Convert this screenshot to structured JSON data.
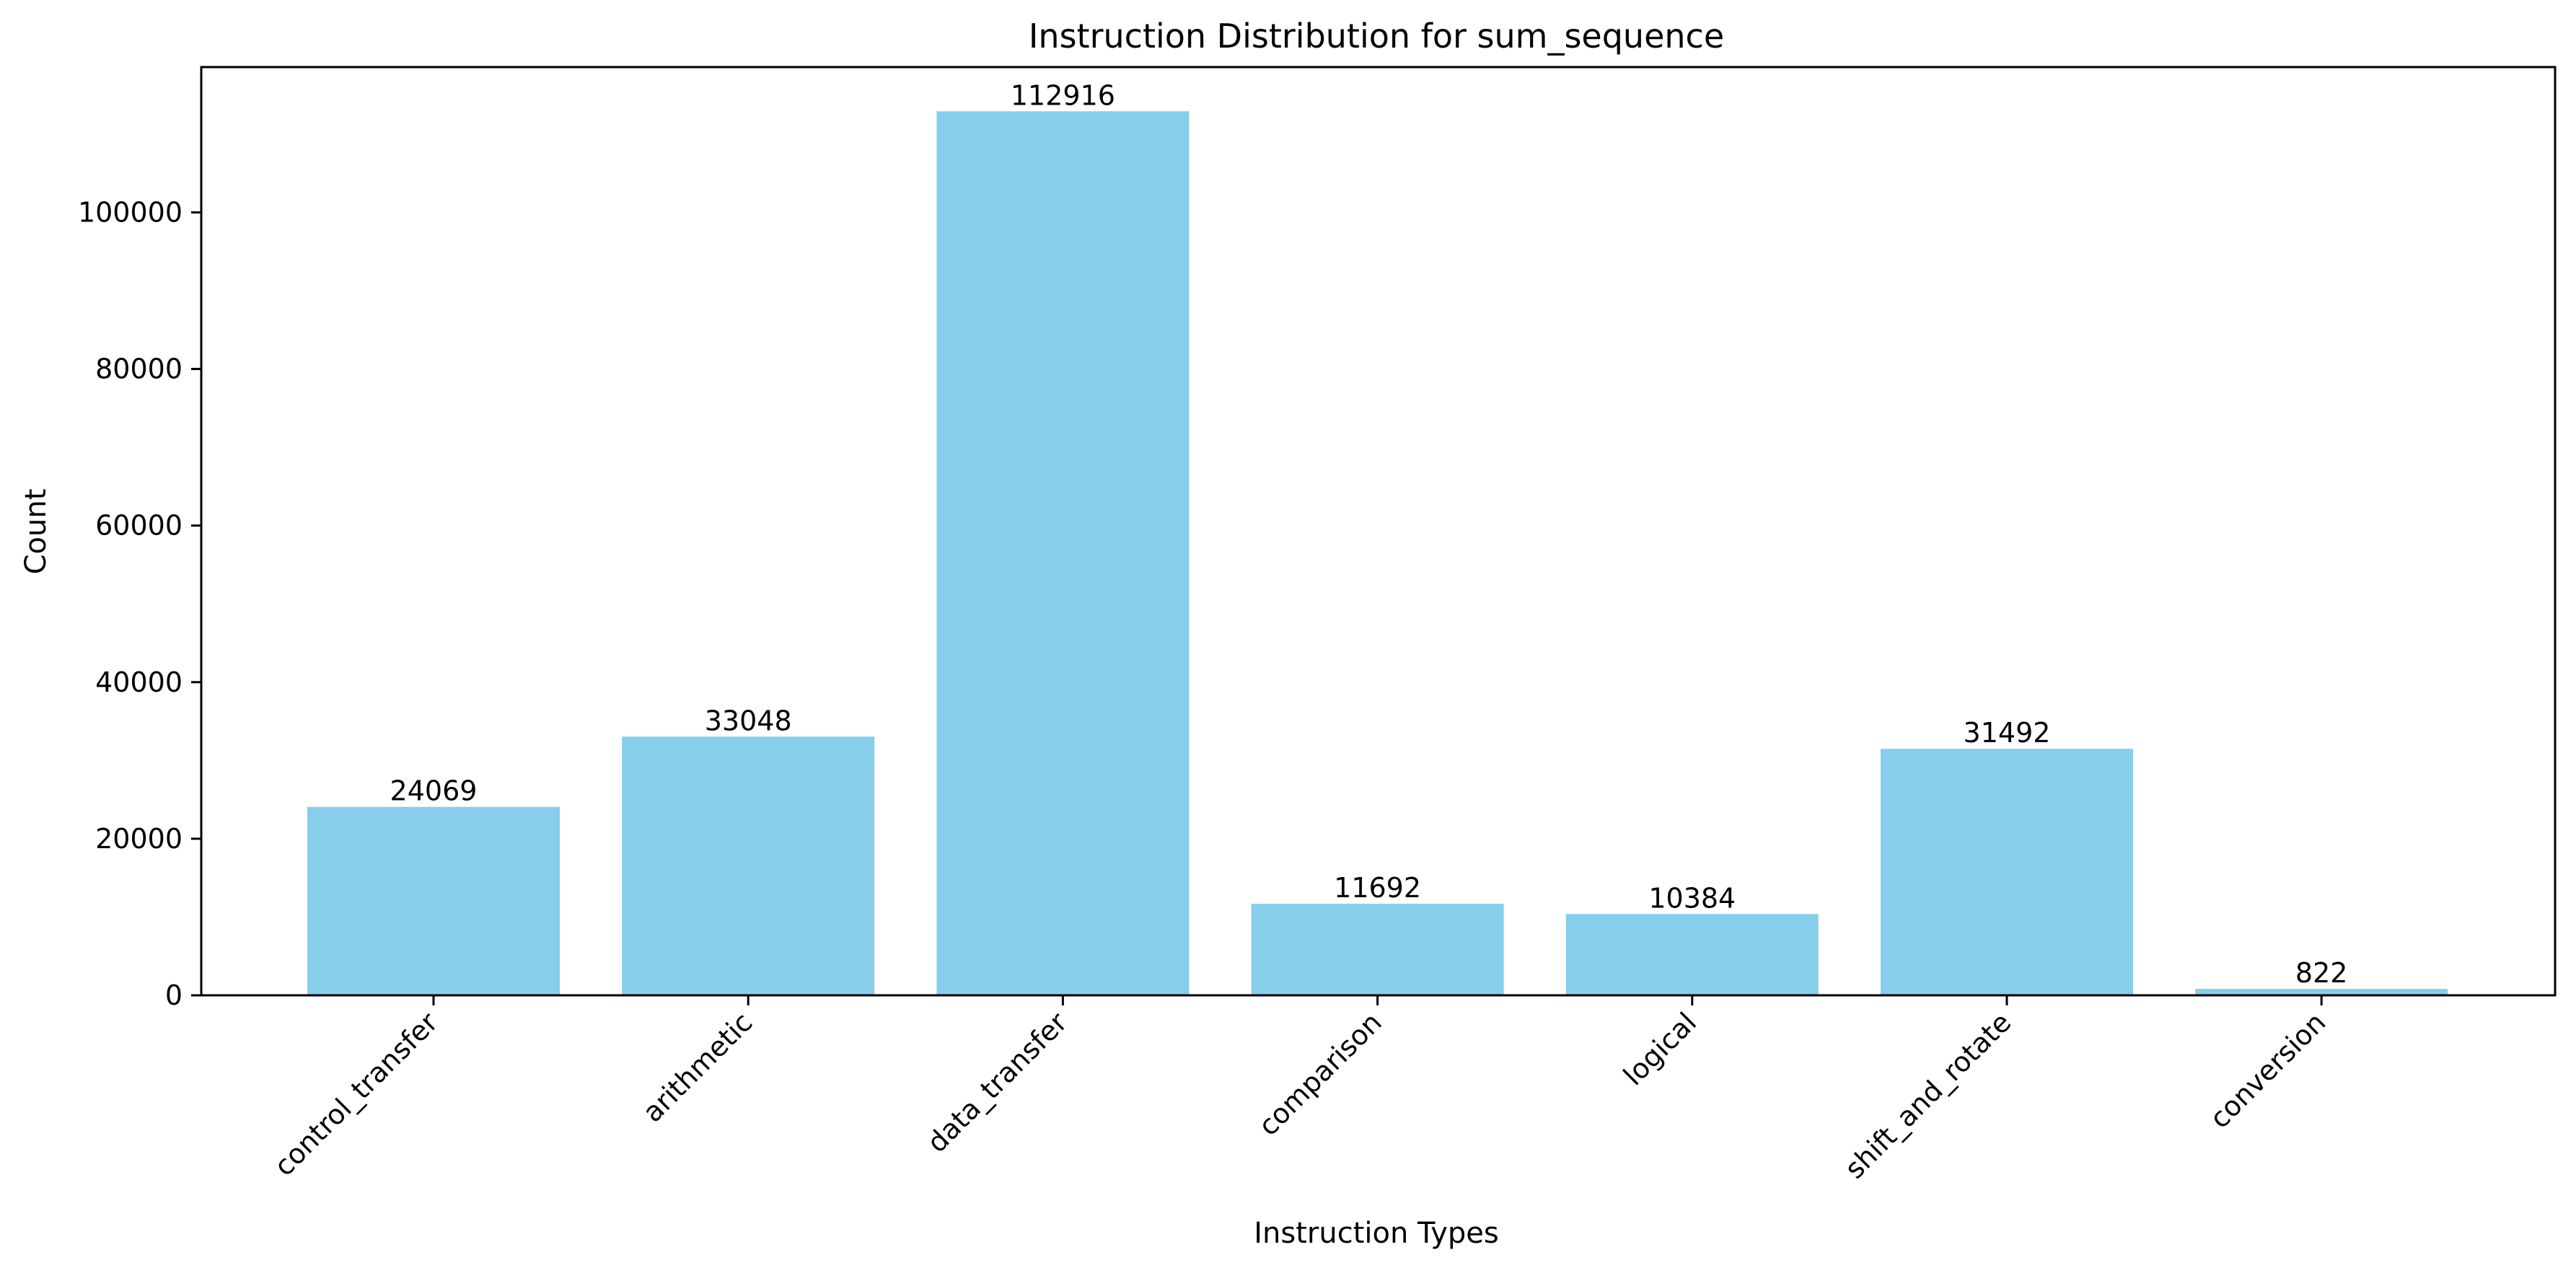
{
  "chart_data": {
    "type": "bar",
    "title": "Instruction Distribution for sum_sequence",
    "xlabel": "Instruction Types",
    "ylabel": "Count",
    "categories": [
      "control_transfer",
      "arithmetic",
      "data_transfer",
      "comparison",
      "logical",
      "shift_and_rotate",
      "conversion"
    ],
    "values": [
      24069,
      33048,
      112916,
      11692,
      10384,
      31492,
      822
    ],
    "data_labels": [
      "24069",
      "33048",
      "112916",
      "11692",
      "10384",
      "31492",
      "822"
    ],
    "yticks": [
      0,
      20000,
      40000,
      60000,
      80000,
      100000
    ],
    "ytick_labels": [
      "0",
      "20000",
      "40000",
      "60000",
      "80000",
      "100000"
    ],
    "ylim": [
      0,
      118562
    ],
    "bar_color": "#87CEEB",
    "grid": false,
    "legend": false
  }
}
